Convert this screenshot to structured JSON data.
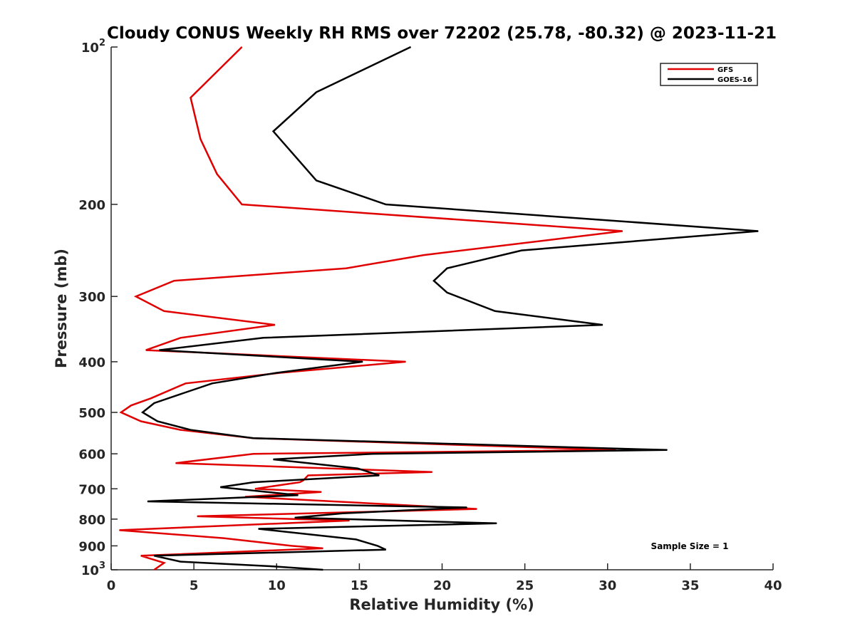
{
  "chart_data": {
    "type": "line",
    "title": "Cloudy CONUS Weekly RH RMS over 72202 (25.78, -80.32) @ 2023-11-21",
    "xlabel": "Relative Humidity (%)",
    "ylabel": "Pressure (mb)",
    "xlim": [
      0,
      40
    ],
    "ylim": [
      100,
      1000
    ],
    "y_scale": "log",
    "y_reversed": true,
    "grid": false,
    "legend_position": "top-right",
    "x_ticks": [
      "0",
      "5",
      "10",
      "15",
      "20",
      "25",
      "30",
      "35",
      "40"
    ],
    "y_ticks": [
      {
        "value": 100,
        "base": "10",
        "exp": "2"
      },
      {
        "value": 200,
        "label": "200"
      },
      {
        "value": 300,
        "label": "300"
      },
      {
        "value": 400,
        "label": "400"
      },
      {
        "value": 500,
        "label": "500"
      },
      {
        "value": 600,
        "label": "600"
      },
      {
        "value": 700,
        "label": "700"
      },
      {
        "value": 800,
        "label": "800"
      },
      {
        "value": 900,
        "label": "900"
      },
      {
        "value": 1000,
        "base": "10",
        "exp": "3"
      }
    ],
    "annotation": "Sample Size = 1",
    "series": [
      {
        "name": "GFS",
        "color": "#e00000",
        "points": [
          [
            7.9,
            100
          ],
          [
            4.8,
            125
          ],
          [
            5.4,
            150
          ],
          [
            6.4,
            175
          ],
          [
            7.9,
            200
          ],
          [
            30.9,
            225
          ],
          [
            18.9,
            250
          ],
          [
            14.2,
            265
          ],
          [
            3.8,
            280
          ],
          [
            1.5,
            300
          ],
          [
            3.2,
            320
          ],
          [
            9.9,
            340
          ],
          [
            4.2,
            360
          ],
          [
            2.1,
            380
          ],
          [
            17.8,
            400
          ],
          [
            10.2,
            420
          ],
          [
            4.5,
            440
          ],
          [
            2.4,
            470
          ],
          [
            1.2,
            485
          ],
          [
            0.6,
            500
          ],
          [
            1.8,
            520
          ],
          [
            4.2,
            540
          ],
          [
            8.6,
            560
          ],
          [
            30.5,
            590
          ],
          [
            8.6,
            600
          ],
          [
            3.9,
            625
          ],
          [
            19.4,
            650
          ],
          [
            11.9,
            660
          ],
          [
            11.6,
            675
          ],
          [
            11.4,
            680
          ],
          [
            8.7,
            700
          ],
          [
            12.7,
            710
          ],
          [
            8.1,
            725
          ],
          [
            22.1,
            765
          ],
          [
            5.2,
            790
          ],
          [
            14.4,
            805
          ],
          [
            0.5,
            840
          ],
          [
            6.8,
            870
          ],
          [
            10.9,
            900
          ],
          [
            12.8,
            910
          ],
          [
            1.8,
            940
          ],
          [
            3.2,
            970
          ],
          [
            2.6,
            1000
          ]
        ]
      },
      {
        "name": "GOES-16",
        "color": "#000000",
        "points": [
          [
            18.1,
            100
          ],
          [
            12.4,
            122
          ],
          [
            9.8,
            145
          ],
          [
            12.4,
            180
          ],
          [
            16.6,
            200
          ],
          [
            39.1,
            225
          ],
          [
            24.8,
            245
          ],
          [
            20.3,
            265
          ],
          [
            19.5,
            280
          ],
          [
            20.3,
            295
          ],
          [
            23.2,
            320
          ],
          [
            29.7,
            340
          ],
          [
            9.2,
            360
          ],
          [
            2.9,
            380
          ],
          [
            15.2,
            400
          ],
          [
            10.0,
            420
          ],
          [
            6.1,
            440
          ],
          [
            4.3,
            460
          ],
          [
            2.6,
            480
          ],
          [
            1.9,
            500
          ],
          [
            2.8,
            520
          ],
          [
            4.8,
            540
          ],
          [
            8.6,
            560
          ],
          [
            33.6,
            590
          ],
          [
            15.8,
            600
          ],
          [
            9.8,
            615
          ],
          [
            14.9,
            640
          ],
          [
            16.2,
            660
          ],
          [
            8.6,
            680
          ],
          [
            6.6,
            695
          ],
          [
            11.3,
            720
          ],
          [
            2.2,
            740
          ],
          [
            21.5,
            760
          ],
          [
            14.0,
            780
          ],
          [
            11.1,
            795
          ],
          [
            23.3,
            815
          ],
          [
            8.9,
            835
          ],
          [
            14.8,
            875
          ],
          [
            16.1,
            900
          ],
          [
            16.6,
            915
          ],
          [
            2.6,
            940
          ],
          [
            4.2,
            965
          ],
          [
            9.8,
            985
          ],
          [
            12.8,
            1000
          ]
        ]
      }
    ]
  }
}
